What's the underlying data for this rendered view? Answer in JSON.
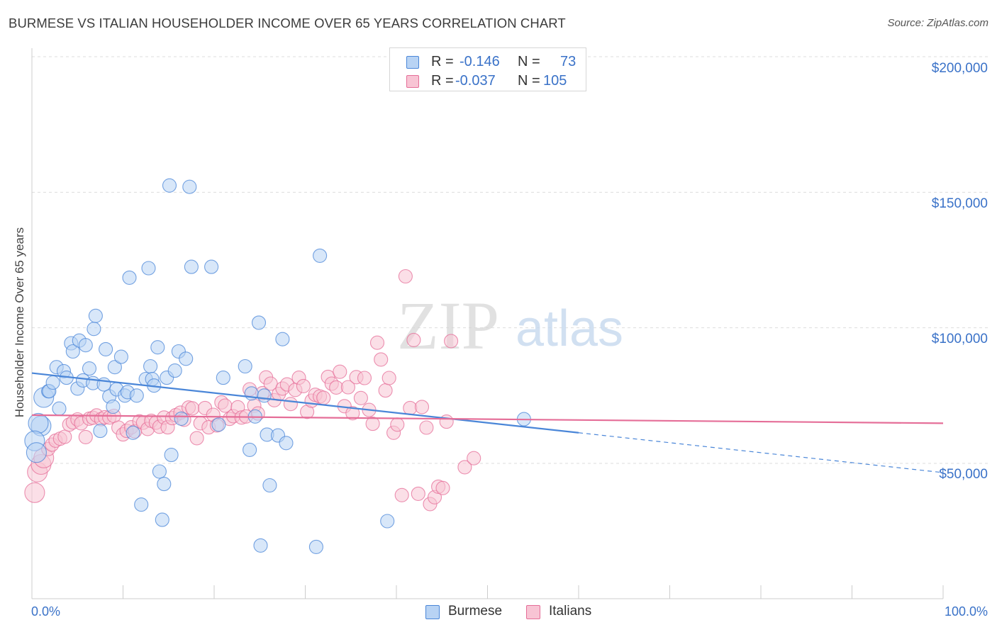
{
  "title": "BURMESE VS ITALIAN HOUSEHOLDER INCOME OVER 65 YEARS CORRELATION CHART",
  "source": "Source: ZipAtlas.com",
  "watermark": {
    "zip": "ZIP",
    "atlas": "atlas"
  },
  "legend": [
    {
      "r_label": "R =",
      "r_value": "-0.146",
      "n_label": "N =",
      "n_value": "73",
      "color": "#4a86d8",
      "fill": "#b8d3f4"
    },
    {
      "r_label": "R =",
      "r_value": "-0.037",
      "n_label": "N =",
      "n_value": "105",
      "color": "#e56e98",
      "fill": "#f8c4d4"
    }
  ],
  "bottom_legend": [
    {
      "label": "Burmese"
    },
    {
      "label": "Italians"
    }
  ],
  "chart_data": {
    "type": "scatter",
    "title": "BURMESE VS ITALIAN HOUSEHOLDER INCOME OVER 65 YEARS CORRELATION CHART",
    "xlabel": "",
    "ylabel": "Householder Income Over 65 years",
    "xlim": [
      0,
      100
    ],
    "ylim": [
      5000,
      210000
    ],
    "x_tick_labels": [
      "0.0%",
      "100.0%"
    ],
    "y_ticks": [
      50000,
      100000,
      150000,
      200000
    ],
    "y_tick_labels": [
      "$50,000",
      "$100,000",
      "$150,000",
      "$200,000"
    ],
    "grid": true,
    "legend_position": "top-center",
    "series": [
      {
        "name": "Burmese",
        "color": "#4a86d8",
        "fill": "#b8d3f4",
        "trend": {
          "x0": 0,
          "y0": 83300,
          "x1": 60,
          "y1": 61300,
          "dashed_to_x": 100,
          "dashed_to_y": 46600
        },
        "points": [
          [
            1.0,
            63800
          ],
          [
            0.7,
            64800
          ],
          [
            1.3,
            74300
          ],
          [
            1.8,
            76600
          ],
          [
            1.9,
            76600
          ],
          [
            2.3,
            79800
          ],
          [
            2.7,
            85500
          ],
          [
            3.0,
            70200
          ],
          [
            3.5,
            84000
          ],
          [
            3.8,
            81600
          ],
          [
            4.3,
            94300
          ],
          [
            4.5,
            91300
          ],
          [
            5.0,
            77600
          ],
          [
            5.2,
            95300
          ],
          [
            5.6,
            80600
          ],
          [
            5.9,
            93600
          ],
          [
            6.3,
            85000
          ],
          [
            6.7,
            79600
          ],
          [
            6.8,
            99600
          ],
          [
            7.0,
            104400
          ],
          [
            7.5,
            62000
          ],
          [
            7.9,
            79100
          ],
          [
            8.1,
            92100
          ],
          [
            8.5,
            74700
          ],
          [
            8.9,
            70900
          ],
          [
            9.1,
            85500
          ],
          [
            9.3,
            77300
          ],
          [
            9.8,
            89300
          ],
          [
            10.2,
            75000
          ],
          [
            10.5,
            76300
          ],
          [
            10.7,
            118500
          ],
          [
            11.1,
            61300
          ],
          [
            11.5,
            75000
          ],
          [
            12.0,
            34800
          ],
          [
            12.5,
            81100
          ],
          [
            12.8,
            122000
          ],
          [
            13.0,
            85800
          ],
          [
            13.2,
            81100
          ],
          [
            13.4,
            78700
          ],
          [
            13.8,
            92800
          ],
          [
            14.0,
            47000
          ],
          [
            14.3,
            29200
          ],
          [
            14.5,
            42400
          ],
          [
            14.8,
            81600
          ],
          [
            15.1,
            152500
          ],
          [
            15.3,
            53100
          ],
          [
            15.7,
            84200
          ],
          [
            16.1,
            91300
          ],
          [
            16.4,
            66500
          ],
          [
            16.9,
            88600
          ],
          [
            17.3,
            152000
          ],
          [
            17.5,
            122500
          ],
          [
            19.7,
            122500
          ],
          [
            20.5,
            64300
          ],
          [
            21.0,
            81600
          ],
          [
            23.4,
            85800
          ],
          [
            23.9,
            55000
          ],
          [
            24.1,
            75800
          ],
          [
            24.5,
            67300
          ],
          [
            24.9,
            101900
          ],
          [
            25.1,
            19700
          ],
          [
            25.5,
            75000
          ],
          [
            25.8,
            60600
          ],
          [
            26.1,
            41900
          ],
          [
            27.0,
            60300
          ],
          [
            27.5,
            95800
          ],
          [
            27.9,
            57500
          ],
          [
            31.2,
            19200
          ],
          [
            31.6,
            126600
          ],
          [
            39.0,
            28700
          ],
          [
            54.0,
            66300
          ],
          [
            0.3,
            58300
          ],
          [
            0.5,
            54000
          ]
        ]
      },
      {
        "name": "Italians",
        "color": "#e56e98",
        "fill": "#f8c4d4",
        "trend": {
          "x0": 0,
          "y0": 67800,
          "x1": 100,
          "y1": 64800
        },
        "points": [
          [
            0.3,
            39200
          ],
          [
            0.6,
            46800
          ],
          [
            1.0,
            49600
          ],
          [
            1.3,
            52000
          ],
          [
            1.8,
            55300
          ],
          [
            2.2,
            56900
          ],
          [
            2.6,
            58400
          ],
          [
            3.1,
            59100
          ],
          [
            3.6,
            59800
          ],
          [
            4.1,
            64300
          ],
          [
            4.5,
            65100
          ],
          [
            5.0,
            66200
          ],
          [
            5.4,
            64800
          ],
          [
            5.9,
            59700
          ],
          [
            6.3,
            66500
          ],
          [
            6.7,
            66800
          ],
          [
            7.1,
            67700
          ],
          [
            7.6,
            66300
          ],
          [
            8.0,
            67000
          ],
          [
            8.5,
            66900
          ],
          [
            9.0,
            67500
          ],
          [
            9.5,
            63200
          ],
          [
            10.0,
            60700
          ],
          [
            10.4,
            62000
          ],
          [
            10.9,
            63300
          ],
          [
            11.3,
            61800
          ],
          [
            11.8,
            65500
          ],
          [
            12.2,
            65000
          ],
          [
            12.7,
            62700
          ],
          [
            13.1,
            65700
          ],
          [
            13.6,
            65000
          ],
          [
            14.0,
            63500
          ],
          [
            14.5,
            66900
          ],
          [
            14.9,
            63300
          ],
          [
            15.4,
            66700
          ],
          [
            15.8,
            67800
          ],
          [
            16.3,
            68700
          ],
          [
            16.7,
            66100
          ],
          [
            17.2,
            70600
          ],
          [
            17.6,
            70300
          ],
          [
            18.1,
            59300
          ],
          [
            18.5,
            64800
          ],
          [
            19.0,
            70400
          ],
          [
            19.4,
            63300
          ],
          [
            19.9,
            67900
          ],
          [
            20.3,
            64000
          ],
          [
            20.8,
            72500
          ],
          [
            21.2,
            71300
          ],
          [
            21.7,
            66400
          ],
          [
            22.1,
            67400
          ],
          [
            22.6,
            70700
          ],
          [
            23.0,
            66900
          ],
          [
            23.5,
            67300
          ],
          [
            23.9,
            77300
          ],
          [
            24.4,
            71300
          ],
          [
            24.8,
            68400
          ],
          [
            25.3,
            75900
          ],
          [
            25.7,
            81700
          ],
          [
            26.2,
            79400
          ],
          [
            26.6,
            73300
          ],
          [
            27.1,
            75600
          ],
          [
            27.5,
            77600
          ],
          [
            28.0,
            79100
          ],
          [
            28.4,
            71900
          ],
          [
            28.9,
            77100
          ],
          [
            29.3,
            81600
          ],
          [
            29.8,
            78500
          ],
          [
            30.2,
            69000
          ],
          [
            30.7,
            73100
          ],
          [
            31.1,
            75300
          ],
          [
            31.6,
            74700
          ],
          [
            32.0,
            74200
          ],
          [
            32.5,
            81900
          ],
          [
            32.9,
            79400
          ],
          [
            33.4,
            78000
          ],
          [
            33.8,
            83800
          ],
          [
            34.3,
            71100
          ],
          [
            34.7,
            78100
          ],
          [
            35.2,
            68500
          ],
          [
            35.6,
            81800
          ],
          [
            36.1,
            74100
          ],
          [
            36.5,
            81500
          ],
          [
            37.0,
            69700
          ],
          [
            37.4,
            64600
          ],
          [
            37.9,
            94500
          ],
          [
            38.3,
            88300
          ],
          [
            38.8,
            76900
          ],
          [
            39.2,
            81500
          ],
          [
            39.7,
            61300
          ],
          [
            40.1,
            64300
          ],
          [
            40.6,
            38300
          ],
          [
            41.0,
            119000
          ],
          [
            41.5,
            70400
          ],
          [
            41.9,
            95500
          ],
          [
            42.4,
            38800
          ],
          [
            42.8,
            70800
          ],
          [
            43.3,
            63200
          ],
          [
            43.7,
            35000
          ],
          [
            44.2,
            37500
          ],
          [
            44.6,
            41400
          ],
          [
            45.1,
            40900
          ],
          [
            45.5,
            65400
          ],
          [
            46.0,
            95100
          ],
          [
            47.5,
            48600
          ],
          [
            48.5,
            51900
          ]
        ]
      }
    ]
  }
}
